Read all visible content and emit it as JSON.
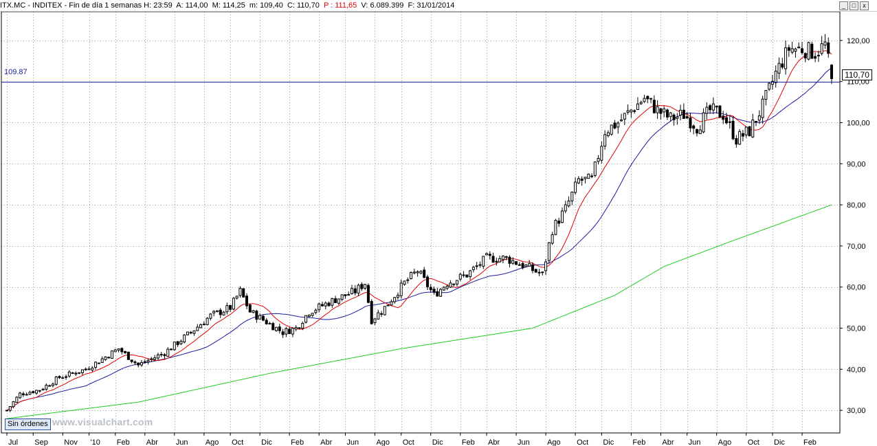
{
  "header": {
    "symbol": "ITX.MC",
    "name": "INDITEX",
    "period": "Fin de día 1 semanas",
    "h": "H: 23:59",
    "a": "A: 114,00",
    "m": "M: 114,25",
    "min": "m: 109,40",
    "c": "C: 110,70",
    "p": "P : 111,65",
    "v": "V: 6.089.399",
    "f": "F: 31/01/2014"
  },
  "controls": {
    "minimize": "_",
    "restore": "□",
    "close": "x",
    "orders_label": "Sin órdenes"
  },
  "watermark": "www.visualchart.com",
  "level_line": {
    "label": "109.87",
    "value": 109.87
  },
  "last_price_label": "110,70",
  "chart_data": {
    "type": "candlestick",
    "ylim": [
      24.5,
      127
    ],
    "y_ticks": [
      "30,00",
      "40,00",
      "50,00",
      "60,00",
      "70,00",
      "80,00",
      "90,00",
      "100,00",
      "110,00",
      "120,00"
    ],
    "y_tick_values": [
      30,
      40,
      50,
      60,
      70,
      80,
      90,
      100,
      110,
      120
    ],
    "x_labels": [
      "Jul",
      "Sep",
      "Nov",
      "'10",
      "Feb",
      "Abr",
      "Jun",
      "Ago",
      "Oct",
      "Dic",
      "Feb",
      "Abr",
      "Jun",
      "Ago",
      "Oct",
      "Dic",
      "Feb",
      "Abr",
      "Jun",
      "Ago",
      "Oct",
      "Dic",
      "Feb",
      "Abr",
      "Jun",
      "Ago",
      "Oct",
      "Dic",
      "Feb"
    ],
    "x_label_week": [
      0,
      8,
      17,
      25,
      33,
      42,
      51,
      60,
      68,
      77,
      86,
      95,
      103,
      112,
      120,
      129,
      138,
      146,
      155,
      164,
      173,
      181,
      190,
      199,
      207,
      216,
      225,
      233,
      242
    ],
    "price_keypoints": [
      [
        0,
        30
      ],
      [
        4,
        34
      ],
      [
        10,
        35
      ],
      [
        16,
        38
      ],
      [
        24,
        40
      ],
      [
        34,
        45
      ],
      [
        40,
        41
      ],
      [
        48,
        44
      ],
      [
        56,
        49
      ],
      [
        62,
        53
      ],
      [
        68,
        55
      ],
      [
        71,
        59
      ],
      [
        74,
        54
      ],
      [
        80,
        51
      ],
      [
        84,
        49
      ],
      [
        88,
        50
      ],
      [
        92,
        54
      ],
      [
        100,
        57
      ],
      [
        106,
        59
      ],
      [
        109,
        61
      ],
      [
        111,
        52
      ],
      [
        115,
        55
      ],
      [
        121,
        61
      ],
      [
        125,
        64
      ],
      [
        130,
        58
      ],
      [
        134,
        61
      ],
      [
        140,
        63
      ],
      [
        146,
        67
      ],
      [
        152,
        67
      ],
      [
        158,
        65
      ],
      [
        163,
        63
      ],
      [
        166,
        74
      ],
      [
        170,
        79
      ],
      [
        174,
        86
      ],
      [
        178,
        86
      ],
      [
        182,
        98
      ],
      [
        186,
        100
      ],
      [
        190,
        103
      ],
      [
        194,
        106
      ],
      [
        198,
        103
      ],
      [
        202,
        101
      ],
      [
        206,
        102
      ],
      [
        210,
        99
      ],
      [
        214,
        103
      ],
      [
        218,
        102
      ],
      [
        222,
        96
      ],
      [
        226,
        98
      ],
      [
        230,
        104
      ],
      [
        234,
        112
      ],
      [
        238,
        118
      ],
      [
        242,
        118
      ],
      [
        246,
        117
      ],
      [
        249,
        119
      ],
      [
        251,
        111
      ]
    ],
    "ma_short_end": 114,
    "ma_mid_end": 108.5,
    "ma_long": [
      [
        0,
        28
      ],
      [
        40,
        32
      ],
      [
        80,
        39
      ],
      [
        120,
        45
      ],
      [
        160,
        50
      ],
      [
        185,
        58
      ],
      [
        200,
        65
      ],
      [
        220,
        71
      ],
      [
        251,
        80
      ]
    ],
    "weeks": 252
  }
}
